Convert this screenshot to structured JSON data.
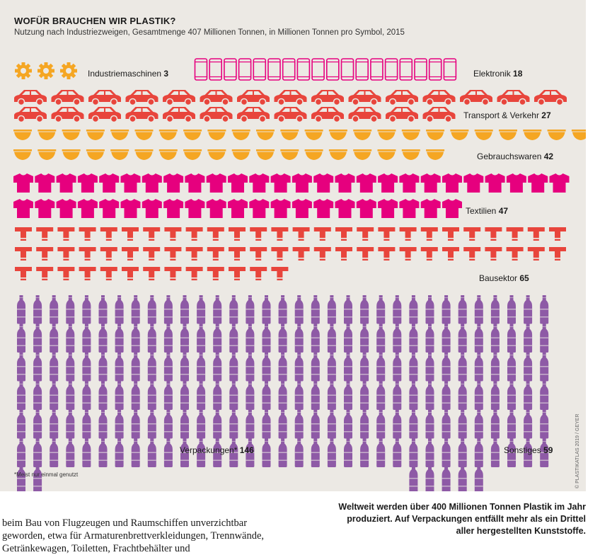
{
  "title": "WOFÜR BRAUCHEN WIR PLASTIK?",
  "subtitle": "Nutzung nach Industriezweigen, Gesamtmenge 407 Millionen Tonnen, in Millionen Tonnen pro Symbol, 2015",
  "footnote": "*Meist nur einmal genutzt",
  "credit": "© PLASTIKATLAS 2019 / GEYER",
  "caption": "Weltweit werden über 400 Millionen Tonnen Plastik im Jahr produziert. Auf Verpackungen entfällt mehr als ein Drittel aller hergestellten Kunststoffe.",
  "body_text": "beim Bau von Flugzeugen und Raumschiffen unverzichtbar geworden, etwa für Armaturenbrettverkleidungen, Trenn­wände, Getränkewagen, Toiletten, Frachtbehälter und",
  "colors": {
    "gear": "#f5a623",
    "phone": "#e6007e",
    "car": "#e8453c",
    "bowl": "#f5a623",
    "shirt": "#e6007e",
    "pipe": "#e8453c",
    "bottle": "#8e5aa6",
    "panel": "#ece9e4"
  },
  "chart_data": {
    "type": "pictograph",
    "unit": "Millionen Tonnen pro Symbol",
    "total": 407,
    "categories": [
      {
        "name": "Industriemaschinen",
        "value": 3,
        "icon": "gear-icon"
      },
      {
        "name": "Elektronik",
        "value": 18,
        "icon": "phone-icon"
      },
      {
        "name": "Transport & Verkehr",
        "value": 27,
        "icon": "car-icon"
      },
      {
        "name": "Gebrauchswaren",
        "value": 42,
        "icon": "bowl-icon"
      },
      {
        "name": "Textilien",
        "value": 47,
        "icon": "shirt-icon"
      },
      {
        "name": "Bausektor",
        "value": 65,
        "icon": "pipe-icon"
      },
      {
        "name": "Verpackungen*",
        "value": 146,
        "icon": "bottle-icon"
      },
      {
        "name": "Sonstiges",
        "value": 59,
        "icon": "bottle-icon"
      }
    ]
  }
}
